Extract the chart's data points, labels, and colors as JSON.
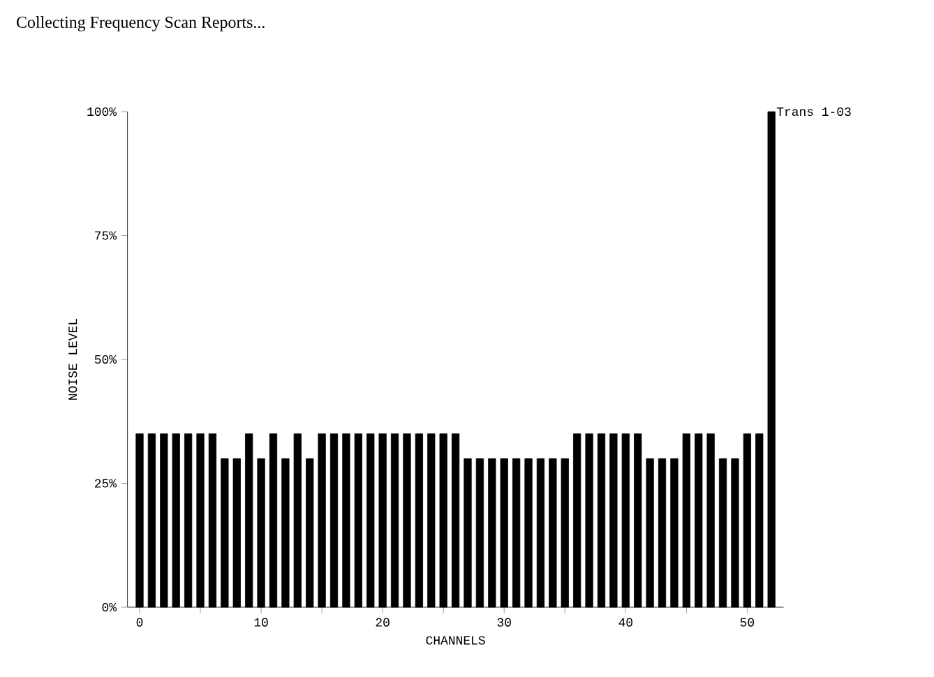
{
  "chart_data": {
    "type": "bar",
    "title": "Collecting Frequency Scan Reports...",
    "xlabel": "CHANNELS",
    "ylabel": "NOISE LEVEL",
    "x": [
      0,
      1,
      2,
      3,
      4,
      5,
      6,
      7,
      8,
      9,
      10,
      11,
      12,
      13,
      14,
      15,
      16,
      17,
      18,
      19,
      20,
      21,
      22,
      23,
      24,
      25,
      26,
      27,
      28,
      29,
      30,
      31,
      32,
      33,
      34,
      35,
      36,
      37,
      38,
      39,
      40,
      41,
      42,
      43,
      44,
      45,
      46,
      47,
      48,
      49,
      50,
      51,
      52
    ],
    "values": [
      35,
      35,
      35,
      35,
      35,
      35,
      35,
      30,
      30,
      35,
      30,
      35,
      30,
      35,
      30,
      35,
      35,
      35,
      35,
      35,
      35,
      35,
      35,
      35,
      35,
      35,
      35,
      30,
      30,
      30,
      30,
      30,
      30,
      30,
      30,
      30,
      35,
      35,
      35,
      35,
      35,
      35,
      30,
      30,
      30,
      35,
      35,
      35,
      30,
      30,
      35,
      35,
      100
    ],
    "color": "#000000",
    "xlim": [
      -1,
      53
    ],
    "xticks": [
      0,
      {
        "value": 5,
        "label": null
      },
      10,
      {
        "value": 15,
        "label": null
      },
      20,
      {
        "value": 25,
        "label": null
      },
      30,
      {
        "value": 35,
        "label": null
      },
      40,
      {
        "value": 45,
        "label": null
      },
      50
    ],
    "ylim": [
      0,
      100
    ],
    "yticks": [
      {
        "value": 0,
        "label": "0%"
      },
      {
        "value": 25,
        "label": "25%"
      },
      {
        "value": 50,
        "label": "50%"
      },
      {
        "value": 75,
        "label": "75%"
      },
      {
        "value": 100,
        "label": "100%"
      }
    ],
    "annotations": [
      {
        "text": "Trans 1-03",
        "x": 52,
        "y": 100
      }
    ],
    "grid": false
  }
}
